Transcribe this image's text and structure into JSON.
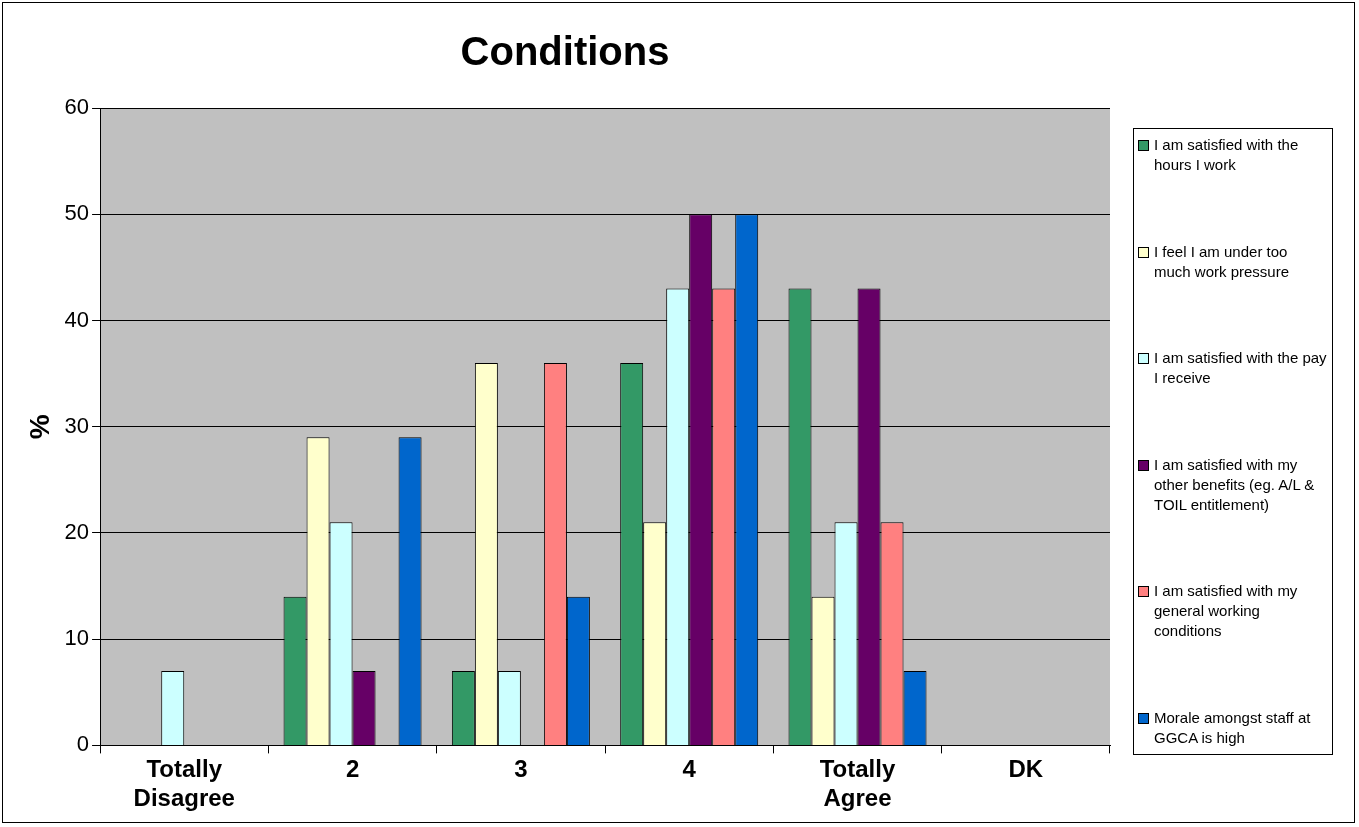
{
  "chart_data": {
    "type": "bar",
    "title": "Conditions",
    "ylabel": "%",
    "categories": [
      "Totally Disagree",
      "2",
      "3",
      "4",
      "Totally Agree",
      "DK"
    ],
    "series": [
      {
        "name": "I am satisfied with the hours I work",
        "color": "#339966",
        "values": [
          0,
          14,
          7,
          36,
          43,
          0
        ]
      },
      {
        "name": "I feel I am under too much work pressure",
        "color": "#ffffcc",
        "values": [
          0,
          29,
          36,
          21,
          14,
          0
        ]
      },
      {
        "name": "I am satisfied with the pay I receive",
        "color": "#ccffff",
        "values": [
          7,
          21,
          7,
          43,
          21,
          0
        ]
      },
      {
        "name": "I am satisfied with my other benefits (eg. A/L & TOIL entitlement)",
        "color": "#660066",
        "values": [
          0,
          7,
          0,
          50,
          43,
          0
        ]
      },
      {
        "name": "I am satisfied with my general working conditions",
        "color": "#ff8080",
        "values": [
          0,
          0,
          36,
          43,
          21,
          0
        ]
      },
      {
        "name": "Morale amongst staff at GGCA is high",
        "color": "#0066cc",
        "values": [
          0,
          29,
          14,
          50,
          7,
          0
        ]
      }
    ],
    "ylim": [
      0,
      60
    ],
    "yticks": [
      0,
      10,
      20,
      30,
      40,
      50,
      60
    ],
    "grid": "y",
    "legend": "right"
  }
}
